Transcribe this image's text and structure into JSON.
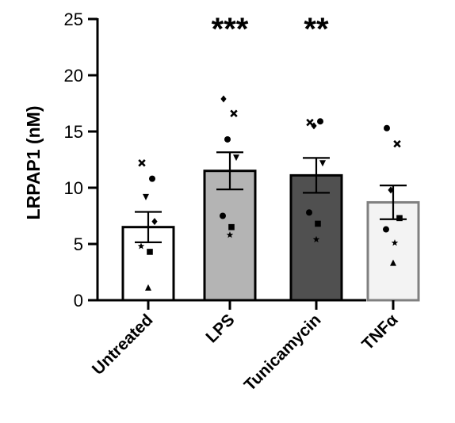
{
  "chart_data": {
    "type": "bar",
    "title": "",
    "xlabel": "",
    "ylabel": "LRPAP1 (nM)",
    "ylim": [
      0,
      25
    ],
    "yticks": [
      0,
      5,
      10,
      15,
      20,
      25
    ],
    "grid": false,
    "categories": [
      "Untreated",
      "LPS",
      "Tunicamycin",
      "TNFα"
    ],
    "values": [
      6.5,
      11.5,
      11.1,
      8.7
    ],
    "sem": [
      1.35,
      1.65,
      1.55,
      1.5
    ],
    "significance": [
      "",
      "***",
      "**",
      ""
    ],
    "bar_fill_colors": [
      "#ffffff",
      "#b4b4b4",
      "#505050",
      "#f3f3f3"
    ],
    "bar_edge_colors": [
      "#000000",
      "#000000",
      "#000000",
      "#808080"
    ],
    "points": [
      [
        {
          "marker": "x-mark",
          "value": 12.2
        },
        {
          "marker": "circle",
          "value": 10.8
        },
        {
          "marker": "triangle-down",
          "value": 9.2
        },
        {
          "marker": "diamond",
          "value": 7.0
        },
        {
          "marker": "star",
          "value": 4.8
        },
        {
          "marker": "square",
          "value": 4.3
        },
        {
          "marker": "triangle-up",
          "value": 1.1
        }
      ],
      [
        {
          "marker": "diamond",
          "value": 17.9
        },
        {
          "marker": "x-mark",
          "value": 16.6
        },
        {
          "marker": "circle",
          "value": 14.3
        },
        {
          "marker": "triangle-down",
          "value": 12.7
        },
        {
          "marker": "circle",
          "value": 7.5
        },
        {
          "marker": "square",
          "value": 6.5
        },
        {
          "marker": "star",
          "value": 5.8
        }
      ],
      [
        {
          "marker": "x-mark",
          "value": 15.8
        },
        {
          "marker": "circle",
          "value": 15.9
        },
        {
          "marker": "diamond",
          "value": 15.5
        },
        {
          "marker": "triangle-down",
          "value": 12.2
        },
        {
          "marker": "circle",
          "value": 7.8
        },
        {
          "marker": "square",
          "value": 6.8
        },
        {
          "marker": "star",
          "value": 5.4
        }
      ],
      [
        {
          "marker": "circle",
          "value": 15.3
        },
        {
          "marker": "x-mark",
          "value": 13.9
        },
        {
          "marker": "diamond",
          "value": 9.8
        },
        {
          "marker": "square",
          "value": 7.3
        },
        {
          "marker": "circle",
          "value": 6.3
        },
        {
          "marker": "star",
          "value": 5.1
        },
        {
          "marker": "triangle-up",
          "value": 3.3
        }
      ]
    ]
  }
}
